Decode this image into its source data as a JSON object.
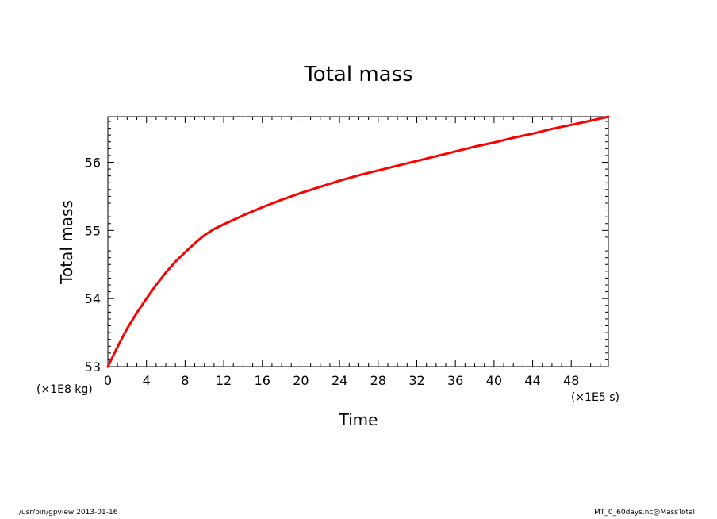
{
  "chart_data": {
    "type": "line",
    "title": "Total mass",
    "xlabel": "Time",
    "ylabel": "Total mass",
    "x_unit": "(×1E5 s)",
    "y_unit": "(×1E8 kg)",
    "xlim": [
      0,
      51.84
    ],
    "ylim": [
      53,
      56.67
    ],
    "xticks": [
      0,
      4,
      8,
      12,
      16,
      20,
      24,
      28,
      32,
      36,
      40,
      44,
      48
    ],
    "xtick_labels": [
      "0",
      "4",
      "8",
      "12",
      "16",
      "20",
      "24",
      "28",
      "32",
      "36",
      "40",
      "44",
      "48"
    ],
    "yticks": [
      53,
      54,
      55,
      56
    ],
    "ytick_labels": [
      "53",
      "54",
      "55",
      "56"
    ],
    "grid": false,
    "series": [
      {
        "color": "#ff0000",
        "x": [
          0,
          1,
          2,
          3,
          4,
          5,
          6,
          7,
          8,
          9,
          10,
          11,
          12,
          14,
          16,
          18,
          20,
          22,
          24,
          26,
          28,
          30,
          32,
          34,
          36,
          38,
          40,
          42,
          44,
          46,
          48,
          50,
          51.84
        ],
        "y": [
          53.0,
          53.29,
          53.56,
          53.79,
          54.0,
          54.2,
          54.38,
          54.54,
          54.68,
          54.81,
          54.93,
          55.02,
          55.09,
          55.22,
          55.34,
          55.45,
          55.55,
          55.64,
          55.73,
          55.81,
          55.88,
          55.95,
          56.02,
          56.09,
          56.16,
          56.23,
          56.29,
          56.36,
          56.42,
          56.49,
          56.55,
          56.61,
          56.67
        ]
      }
    ]
  },
  "footer": {
    "left": "/usr/bin/gpview  2013-01-16",
    "right": "MT_0_60days.nc@MassTotal"
  },
  "colors": {
    "line": "#ff0000",
    "axis": "#000000",
    "background": "#ffffff"
  }
}
